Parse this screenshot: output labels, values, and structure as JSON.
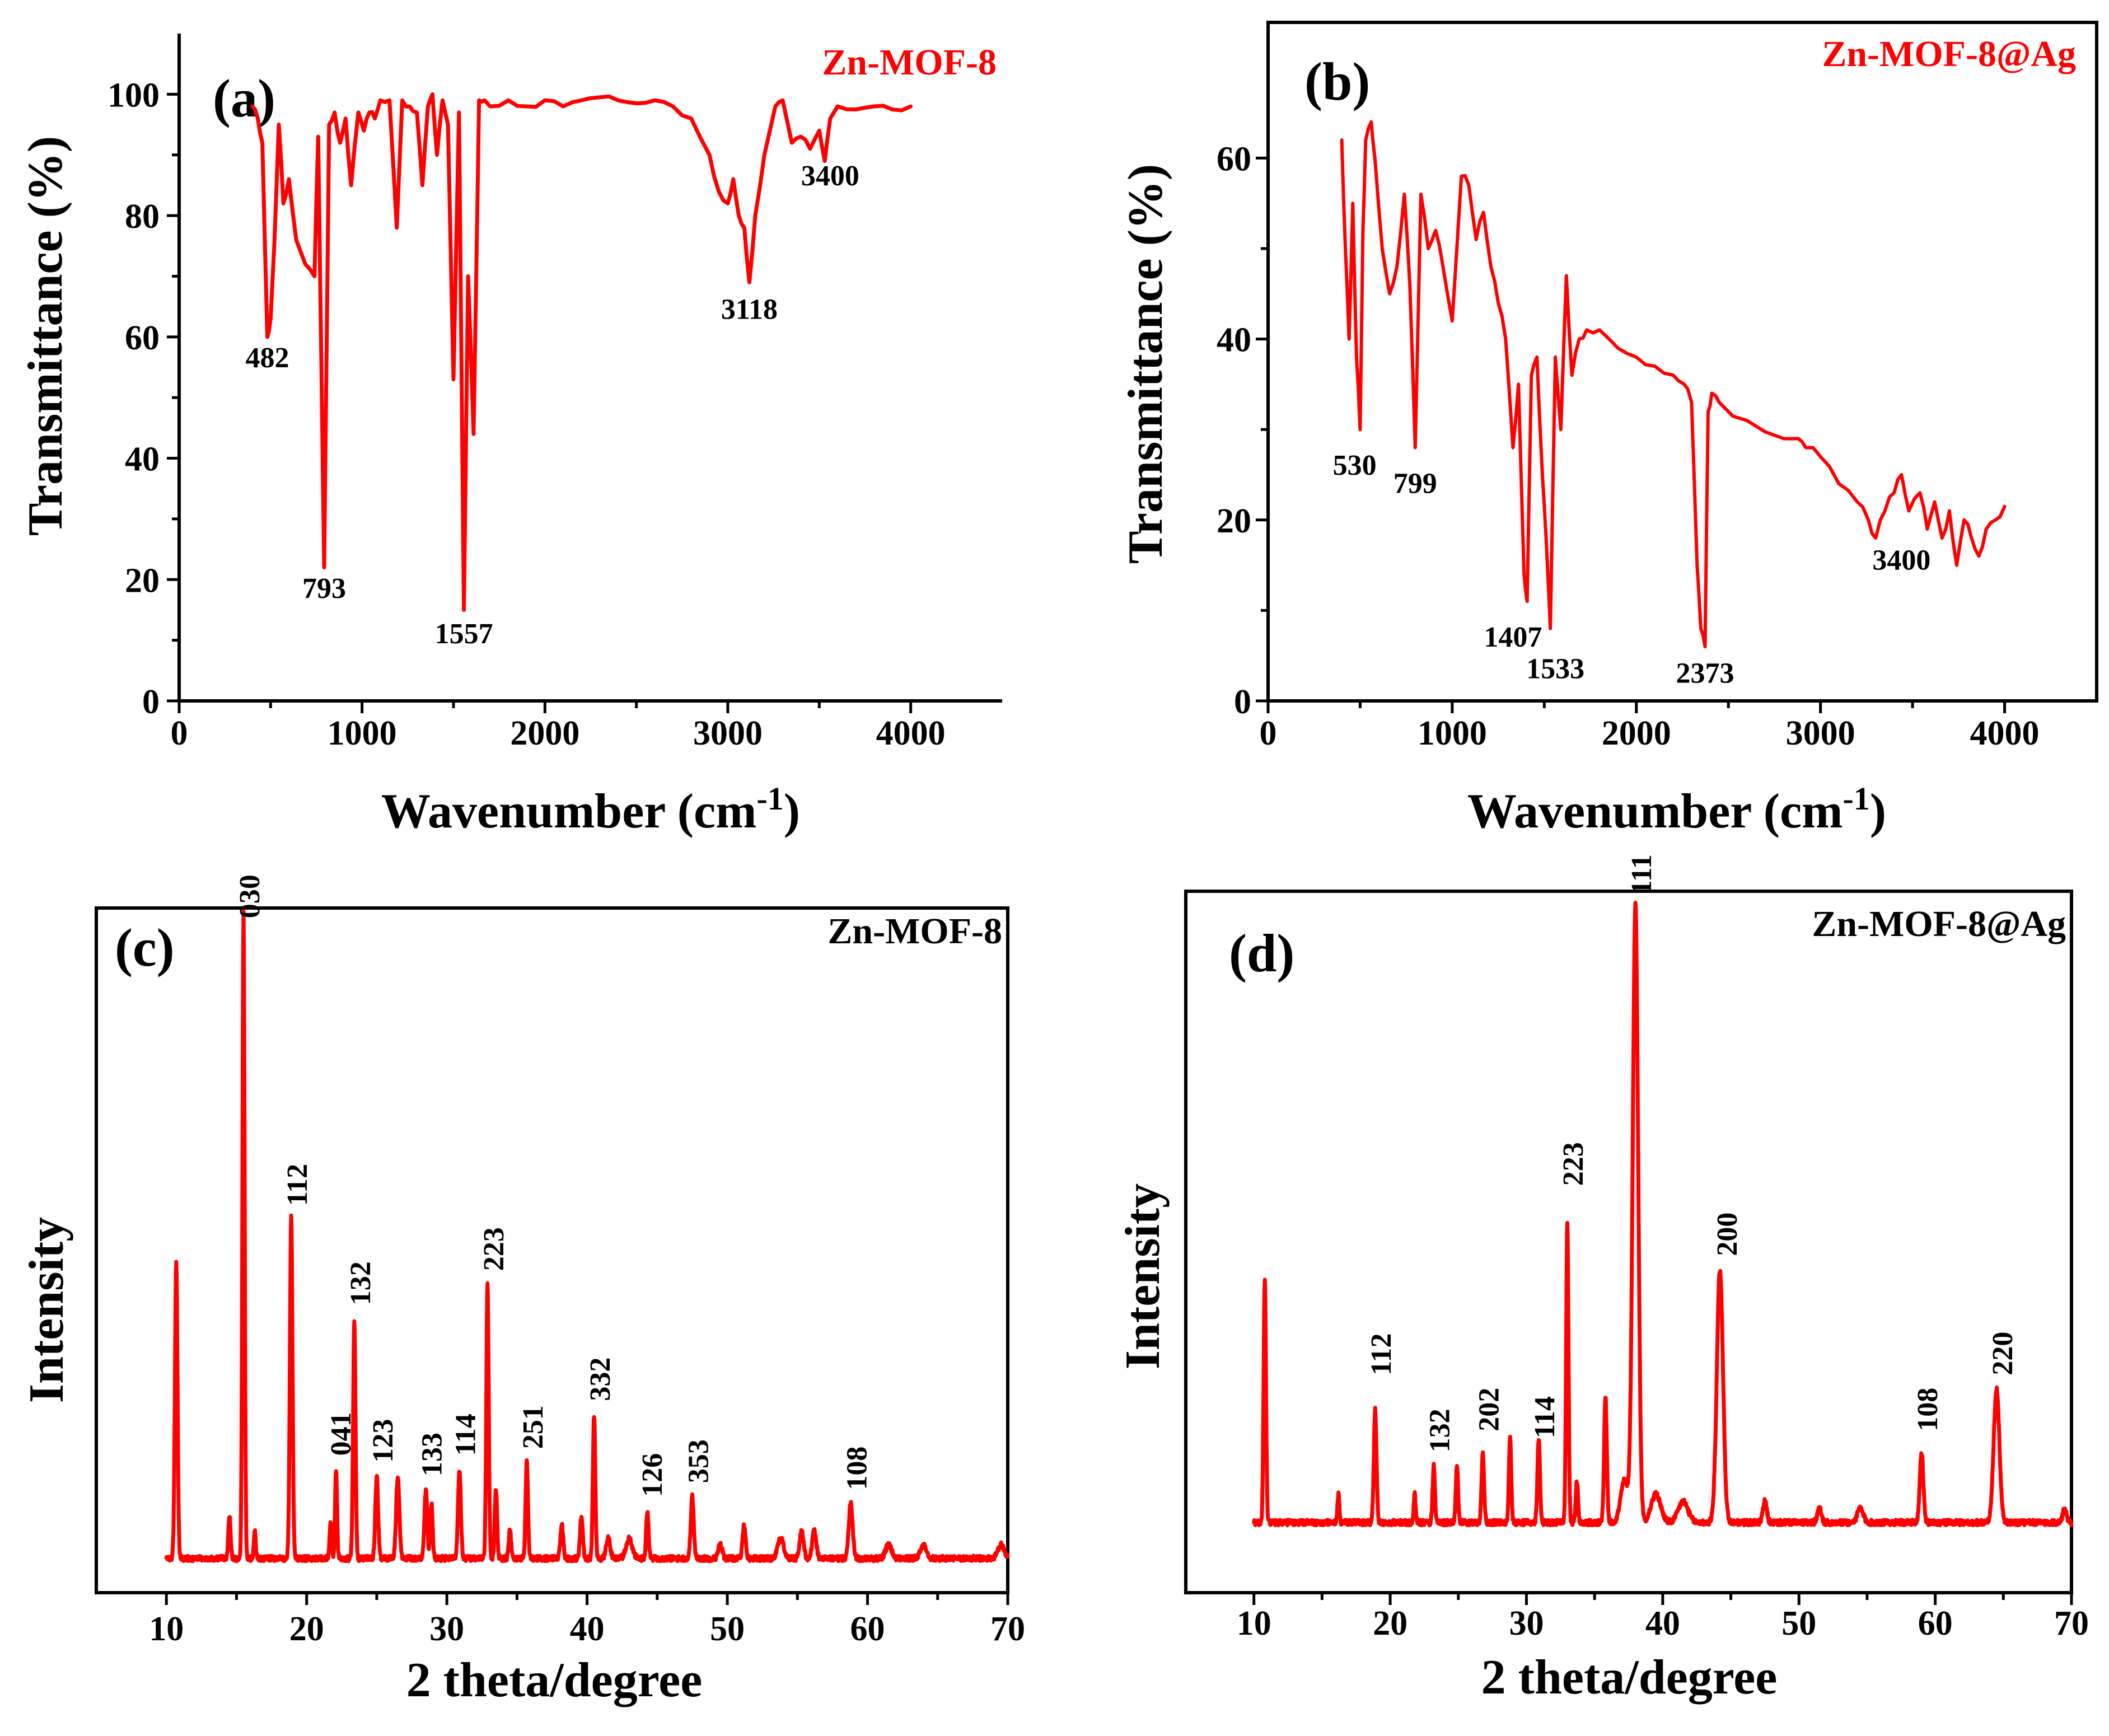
{
  "colors": {
    "trace": "#ff0000",
    "axis": "#000000",
    "background": "#ffffff"
  },
  "chart_data": [
    {
      "id": "a",
      "type": "line",
      "panel_label": "(a)",
      "title": "Zn-MOF-8",
      "xlabel": "Wavenumber (cm",
      "xlabel_sup": "-1",
      "xlabel_close": ")",
      "ylabel": "Transmittance (%)",
      "xlim": [
        0,
        4500
      ],
      "ylim": [
        0,
        110
      ],
      "xticks": [
        0,
        1000,
        2000,
        3000,
        4000
      ],
      "xtick_labels": [
        "0",
        "1000",
        "2000",
        "3000",
        "4000"
      ],
      "yticks": [
        0,
        20,
        40,
        60,
        80,
        100
      ],
      "ytick_labels": [
        "0",
        "20",
        "40",
        "60",
        "80",
        "100"
      ],
      "series": [
        {
          "name": "Zn-MOF-8",
          "x": [
            400,
            430,
            455,
            482,
            500,
            520,
            545,
            570,
            600,
            640,
            690,
            740,
            760,
            793,
            820,
            850,
            880,
            910,
            940,
            980,
            1010,
            1040,
            1070,
            1100,
            1150,
            1190,
            1220,
            1260,
            1300,
            1330,
            1360,
            1385,
            1410,
            1440,
            1470,
            1500,
            1530,
            1557,
            1580,
            1610,
            1640,
            1670,
            1700,
            1800,
            1900,
            2000,
            2100,
            2200,
            2300,
            2400,
            2500,
            2600,
            2700,
            2800,
            2900,
            2950,
            3000,
            3030,
            3060,
            3090,
            3118,
            3150,
            3200,
            3260,
            3300,
            3350,
            3400,
            3450,
            3500,
            3530,
            3560,
            3600,
            3700,
            3800,
            3900,
            4000
          ],
          "y": [
            98,
            96,
            92,
            60,
            63,
            75,
            95,
            82,
            86,
            76,
            72,
            70,
            93,
            22,
            95,
            97,
            92,
            96,
            85,
            97,
            94,
            97,
            96,
            99,
            99,
            78,
            99,
            98,
            97,
            85,
            98,
            100,
            90,
            99,
            95,
            53,
            97,
            15,
            70,
            44,
            99,
            99,
            98,
            99,
            98,
            99,
            98,
            99,
            99.5,
            99,
            98.5,
            99,
            98,
            96,
            90,
            84,
            82,
            86,
            80,
            78,
            69,
            80,
            90,
            98,
            99,
            92,
            93,
            91,
            94,
            89,
            96,
            98,
            97.5,
            98,
            97.5,
            98
          ]
        }
      ],
      "annotations": [
        {
          "text": "482",
          "x": 482,
          "y": 55
        },
        {
          "text": "793",
          "x": 793,
          "y": 17
        },
        {
          "text": "1557",
          "x": 1557,
          "y": 9.5
        },
        {
          "text": "3118",
          "x": 3118,
          "y": 63
        },
        {
          "text": "3400",
          "x": 3560,
          "y": 85
        }
      ]
    },
    {
      "id": "b",
      "type": "line",
      "panel_label": "(b)",
      "title": "Zn-MOF-8@Ag",
      "xlabel": "Wavenumber (cm",
      "xlabel_sup": "-1",
      "xlabel_close": ")",
      "ylabel": "Transmittance (%)",
      "xlim": [
        0,
        4500
      ],
      "ylim": [
        0,
        75
      ],
      "xticks": [
        0,
        1000,
        2000,
        3000,
        4000
      ],
      "xtick_labels": [
        "0",
        "1000",
        "2000",
        "3000",
        "4000"
      ],
      "yticks": [
        0,
        20,
        40,
        60
      ],
      "ytick_labels": [
        "0",
        "20",
        "40",
        "60"
      ],
      "series": [
        {
          "name": "Zn-MOF-8@Ag",
          "x": [
            400,
            420,
            440,
            460,
            480,
            500,
            515,
            530,
            560,
            580,
            620,
            660,
            700,
            740,
            770,
            799,
            830,
            870,
            910,
            950,
            1000,
            1050,
            1090,
            1130,
            1170,
            1210,
            1250,
            1290,
            1330,
            1360,
            1390,
            1407,
            1430,
            1460,
            1490,
            1510,
            1533,
            1560,
            1590,
            1620,
            1650,
            1690,
            1730,
            1800,
            1900,
            2000,
            2100,
            2200,
            2260,
            2300,
            2330,
            2350,
            2373,
            2390,
            2410,
            2450,
            2600,
            2800,
            2880,
            2920,
            3000,
            3100,
            3200,
            3260,
            3300,
            3350,
            3400,
            3440,
            3480,
            3540,
            3580,
            3620,
            3660,
            3700,
            3740,
            3780,
            3820,
            3860,
            3900,
            3950,
            4000
          ],
          "y": [
            62,
            50,
            40,
            55,
            38,
            30,
            52,
            62,
            64,
            60,
            50,
            45,
            48,
            56,
            46,
            28,
            56,
            50,
            52,
            48,
            42,
            58,
            57,
            51,
            54,
            48,
            44,
            40,
            28,
            35,
            14,
            11,
            36,
            38,
            25,
            18,
            8,
            38,
            30,
            47,
            36,
            40,
            41,
            41,
            39,
            38,
            37,
            36,
            35,
            33,
            15,
            8,
            6,
            32,
            34,
            33,
            31,
            29,
            29,
            28,
            27,
            24,
            22,
            20,
            18,
            21,
            23,
            25,
            21,
            23,
            19,
            22,
            18,
            21,
            15,
            20,
            18,
            16,
            19,
            20,
            21.5
          ]
        }
      ],
      "annotations": [
        {
          "text": "530",
          "x": 470,
          "y": 25
        },
        {
          "text": "799",
          "x": 799,
          "y": 23
        },
        {
          "text": "1407",
          "x": 1330,
          "y": 6
        },
        {
          "text": "1533",
          "x": 1560,
          "y": 2.5
        },
        {
          "text": "2373",
          "x": 2373,
          "y": 2
        },
        {
          "text": "3400",
          "x": 3440,
          "y": 14.5
        }
      ]
    },
    {
      "id": "c",
      "type": "line",
      "panel_label": "(c)",
      "title": "Zn-MOF-8",
      "xlabel": "2 theta/degree",
      "ylabel": "Intensity",
      "xlim": [
        5,
        70
      ],
      "ylim": [
        0,
        1
      ],
      "xticks": [
        10,
        20,
        30,
        40,
        50,
        60,
        70
      ],
      "xtick_labels": [
        "10",
        "20",
        "30",
        "40",
        "50",
        "60",
        "70"
      ],
      "yticks": [],
      "ytick_labels": [],
      "series": [
        {
          "name": "Zn-MOF-8",
          "baseline": 0.05,
          "noise": 0.004,
          "peaks": [
            [
              10.7,
              0.43,
              0.13
            ],
            [
              14.5,
              0.06,
              0.12
            ],
            [
              15.5,
              0.945,
              0.11
            ],
            [
              16.3,
              0.04,
              0.1
            ],
            [
              18.9,
              0.5,
              0.13
            ],
            [
              21.7,
              0.05,
              0.1
            ],
            [
              22.1,
              0.13,
              0.1
            ],
            [
              23.4,
              0.35,
              0.12
            ],
            [
              25.0,
              0.12,
              0.14
            ],
            [
              26.5,
              0.12,
              0.16
            ],
            [
              28.5,
              0.1,
              0.14
            ],
            [
              28.9,
              0.08,
              0.12
            ],
            [
              30.9,
              0.13,
              0.14
            ],
            [
              32.9,
              0.4,
              0.12
            ],
            [
              33.5,
              0.1,
              0.12
            ],
            [
              34.5,
              0.04,
              0.12
            ],
            [
              35.7,
              0.14,
              0.12
            ],
            [
              38.2,
              0.05,
              0.14
            ],
            [
              39.6,
              0.06,
              0.14
            ],
            [
              40.5,
              0.21,
              0.12
            ],
            [
              41.5,
              0.03,
              0.2
            ],
            [
              43.0,
              0.03,
              0.3
            ],
            [
              44.3,
              0.07,
              0.12
            ],
            [
              47.5,
              0.09,
              0.15
            ],
            [
              49.5,
              0.02,
              0.2
            ],
            [
              51.2,
              0.05,
              0.15
            ],
            [
              53.8,
              0.03,
              0.3
            ],
            [
              55.3,
              0.04,
              0.2
            ],
            [
              56.2,
              0.04,
              0.2
            ],
            [
              58.8,
              0.08,
              0.2
            ],
            [
              61.5,
              0.02,
              0.3
            ],
            [
              64.0,
              0.02,
              0.3
            ],
            [
              69.5,
              0.02,
              0.3
            ]
          ]
        }
      ],
      "annotations": [
        {
          "text": "030",
          "x": 15.9,
          "y": 0.985
        },
        {
          "text": "112",
          "x": 19.3,
          "y": 0.565
        },
        {
          "text": "132",
          "x": 23.8,
          "y": 0.42
        },
        {
          "text": "041",
          "x": 22.4,
          "y": 0.2
        },
        {
          "text": "123",
          "x": 25.4,
          "y": 0.19
        },
        {
          "text": "133",
          "x": 28.9,
          "y": 0.17
        },
        {
          "text": "114",
          "x": 31.3,
          "y": 0.2
        },
        {
          "text": "223",
          "x": 33.3,
          "y": 0.47
        },
        {
          "text": "251",
          "x": 36.1,
          "y": 0.21
        },
        {
          "text": "332",
          "x": 40.9,
          "y": 0.28
        },
        {
          "text": "126",
          "x": 44.6,
          "y": 0.14
        },
        {
          "text": "353",
          "x": 47.9,
          "y": 0.16
        },
        {
          "text": "108",
          "x": 59.2,
          "y": 0.15
        }
      ]
    },
    {
      "id": "d",
      "type": "line",
      "panel_label": "(d)",
      "title": "Zn-MOF-8@Ag",
      "xlabel": "2 theta/degree",
      "ylabel": "Intensity",
      "xlim": [
        5,
        70
      ],
      "ylim": [
        0,
        1
      ],
      "xticks": [
        10,
        20,
        30,
        40,
        50,
        60,
        70
      ],
      "xtick_labels": [
        "10",
        "20",
        "30",
        "40",
        "50",
        "60",
        "70"
      ],
      "yticks": [],
      "ytick_labels": [],
      "series": [
        {
          "name": "Zn-MOF-8@Ag",
          "baseline": 0.1,
          "noise": 0.004,
          "peaks": [
            [
              10.8,
              0.35,
              0.12
            ],
            [
              16.2,
              0.04,
              0.1
            ],
            [
              18.9,
              0.16,
              0.14
            ],
            [
              21.8,
              0.04,
              0.1
            ],
            [
              23.2,
              0.08,
              0.12
            ],
            [
              24.9,
              0.08,
              0.12
            ],
            [
              26.8,
              0.1,
              0.13
            ],
            [
              28.8,
              0.12,
              0.12
            ],
            [
              30.9,
              0.12,
              0.13
            ],
            [
              33.0,
              0.43,
              0.12
            ],
            [
              33.7,
              0.06,
              0.12
            ],
            [
              35.8,
              0.18,
              0.14
            ],
            [
              37.2,
              0.06,
              0.4
            ],
            [
              38.0,
              0.88,
              0.28
            ],
            [
              39.5,
              0.04,
              0.5
            ],
            [
              41.5,
              0.03,
              0.5
            ],
            [
              44.2,
              0.36,
              0.32
            ],
            [
              47.5,
              0.03,
              0.2
            ],
            [
              51.5,
              0.02,
              0.2
            ],
            [
              54.5,
              0.02,
              0.3
            ],
            [
              59.0,
              0.1,
              0.18
            ],
            [
              64.5,
              0.19,
              0.3
            ],
            [
              69.5,
              0.02,
              0.2
            ]
          ]
        }
      ],
      "annotations": [
        {
          "text": "111",
          "x": 38.4,
          "y": 0.995
        },
        {
          "text": "112",
          "x": 19.3,
          "y": 0.31
        },
        {
          "text": "132",
          "x": 23.6,
          "y": 0.2
        },
        {
          "text": "202",
          "x": 27.2,
          "y": 0.23
        },
        {
          "text": "114",
          "x": 31.3,
          "y": 0.22
        },
        {
          "text": "223",
          "x": 33.4,
          "y": 0.58
        },
        {
          "text": "200",
          "x": 44.7,
          "y": 0.48
        },
        {
          "text": "108",
          "x": 59.4,
          "y": 0.23
        },
        {
          "text": "220",
          "x": 64.9,
          "y": 0.31
        }
      ]
    }
  ]
}
